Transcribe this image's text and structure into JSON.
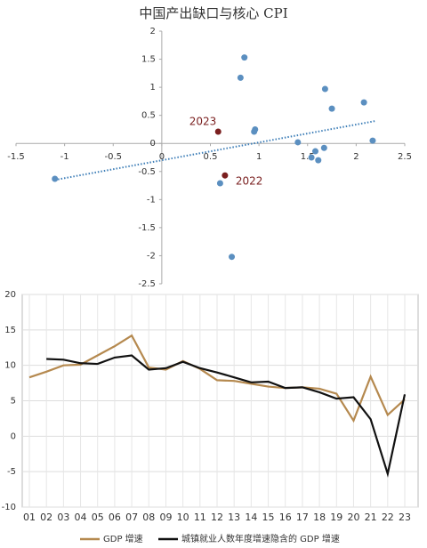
{
  "chart_data": [
    {
      "type": "scatter",
      "title": "中国产出缺口与核心 CPI",
      "xlim": [
        -1.5,
        2.5
      ],
      "xticks": [
        -1.5,
        -1,
        -0.5,
        0,
        0.5,
        1,
        1.5,
        2,
        2.5
      ],
      "ylim": [
        -2.5,
        2
      ],
      "yticks": [
        -2.5,
        -2,
        -1.5,
        -1,
        -0.5,
        0,
        0.5,
        1,
        1.5,
        2
      ],
      "series": [
        {
          "color": "#5b8fc0",
          "x": [
            -1.1,
            0.85,
            0.81,
            0.96,
            0.95,
            1.68,
            1.75,
            2.08,
            2.17,
            1.4,
            1.58,
            1.54,
            1.61,
            1.67,
            0.6,
            0.72
          ],
          "values": [
            -0.63,
            1.53,
            1.17,
            0.25,
            0.21,
            0.97,
            0.62,
            0.73,
            0.05,
            0.02,
            -0.14,
            -0.25,
            -0.3,
            -0.08,
            -0.71,
            -2.02
          ]
        },
        {
          "color": "#7a1f1f",
          "x": [
            0.58,
            0.65
          ],
          "values": [
            0.21,
            -0.57
          ],
          "labels": [
            "2023",
            "2022"
          ]
        }
      ],
      "trendline": {
        "color": "#3f7fb8",
        "x": [
          -1.1,
          2.2
        ],
        "values": [
          -0.65,
          0.4
        ]
      }
    },
    {
      "type": "line",
      "categories": [
        "01",
        "02",
        "03",
        "04",
        "05",
        "06",
        "07",
        "08",
        "09",
        "10",
        "11",
        "12",
        "13",
        "14",
        "15",
        "16",
        "17",
        "18",
        "19",
        "20",
        "21",
        "22",
        "23"
      ],
      "ylim": [
        -10,
        20
      ],
      "yticks": [
        -10,
        -5,
        0,
        5,
        10,
        15,
        20
      ],
      "grid": true,
      "series": [
        {
          "name": "GDP 增速",
          "color": "#b5894f",
          "values": [
            8.3,
            9.1,
            10.0,
            10.1,
            11.4,
            12.7,
            14.2,
            9.7,
            9.4,
            10.6,
            9.5,
            7.9,
            7.8,
            7.4,
            7.0,
            6.8,
            6.9,
            6.7,
            6.0,
            2.2,
            8.4,
            3.0,
            5.2
          ]
        },
        {
          "name": "城镇就业人数年度增速隐含的 GDP 增速",
          "color": "#111111",
          "values": [
            null,
            10.9,
            10.8,
            10.3,
            10.2,
            11.1,
            11.4,
            9.4,
            9.6,
            10.5,
            9.6,
            9.0,
            8.3,
            7.6,
            7.7,
            6.8,
            6.9,
            6.2,
            5.3,
            5.5,
            2.4,
            -5.3,
            5.9
          ]
        }
      ]
    }
  ]
}
